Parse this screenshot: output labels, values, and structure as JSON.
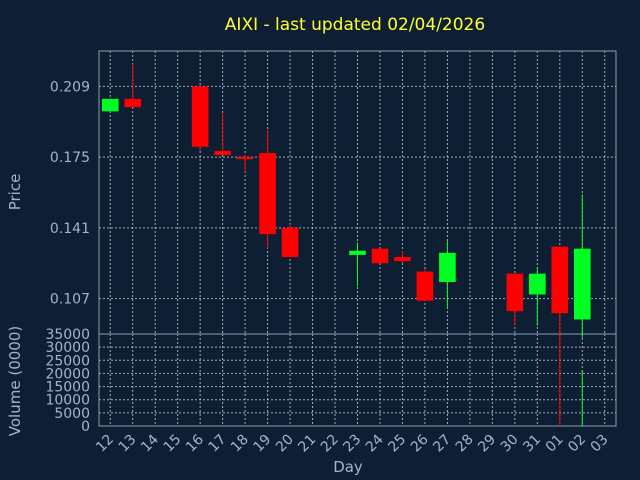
{
  "chart_data": {
    "type": "candlestick",
    "title": "AIXI - last updated 02/04/2026",
    "xlabel": "Day",
    "ylabel": "Price",
    "volume_label": "Volume (0000)",
    "x_ticks": [
      "12",
      "13",
      "14",
      "15",
      "16",
      "17",
      "18",
      "19",
      "20",
      "21",
      "22",
      "23",
      "24",
      "25",
      "26",
      "27",
      "28",
      "29",
      "30",
      "31",
      "01",
      "02",
      "03"
    ],
    "y_ticks": [
      0.107,
      0.141,
      0.175,
      0.209
    ],
    "y_tick_labels": [
      "0.107",
      "0.141",
      "0.175",
      "0.209"
    ],
    "ylim": [
      0.09,
      0.226
    ],
    "volume_ticks": [
      0,
      5000,
      10000,
      15000,
      20000,
      25000,
      30000,
      35000
    ],
    "volume_tick_labels": [
      "0",
      "5000",
      "10000",
      "15000",
      "20000",
      "25000",
      "30000",
      "35000"
    ],
    "volume_ylim": [
      0,
      35000
    ],
    "grid": true,
    "colors": {
      "up": "#00ff22",
      "down": "#ff0000",
      "background": "#0f1f33",
      "title": "#ffff33",
      "text": "#9fb6cc",
      "grid": "#b8c4d0"
    },
    "candles": [
      {
        "day": "12",
        "open": 0.197,
        "high": 0.203,
        "low": 0.197,
        "close": 0.203,
        "volume": 0
      },
      {
        "day": "13",
        "open": 0.203,
        "high": 0.22,
        "low": 0.199,
        "close": 0.199,
        "volume": 0
      },
      {
        "day": "16",
        "open": 0.209,
        "high": 0.209,
        "low": 0.178,
        "close": 0.18,
        "volume": 0
      },
      {
        "day": "17",
        "open": 0.178,
        "high": 0.196,
        "low": 0.176,
        "close": 0.176,
        "volume": 0
      },
      {
        "day": "18",
        "open": 0.175,
        "high": 0.176,
        "low": 0.168,
        "close": 0.174,
        "volume": 0
      },
      {
        "day": "19",
        "open": 0.177,
        "high": 0.188,
        "low": 0.131,
        "close": 0.138,
        "volume": 0
      },
      {
        "day": "20",
        "open": 0.141,
        "high": 0.143,
        "low": 0.127,
        "close": 0.127,
        "volume": 0
      },
      {
        "day": "23",
        "open": 0.128,
        "high": 0.134,
        "low": 0.113,
        "close": 0.13,
        "volume": 0
      },
      {
        "day": "24",
        "open": 0.131,
        "high": 0.131,
        "low": 0.124,
        "close": 0.124,
        "volume": 0
      },
      {
        "day": "25",
        "open": 0.127,
        "high": 0.13,
        "low": 0.124,
        "close": 0.125,
        "volume": 0
      },
      {
        "day": "26",
        "open": 0.12,
        "high": 0.121,
        "low": 0.106,
        "close": 0.106,
        "volume": 0
      },
      {
        "day": "27",
        "open": 0.115,
        "high": 0.135,
        "low": 0.103,
        "close": 0.129,
        "volume": 0
      },
      {
        "day": "30",
        "open": 0.119,
        "high": 0.119,
        "low": 0.094,
        "close": 0.101,
        "volume": 0
      },
      {
        "day": "31",
        "open": 0.109,
        "high": 0.122,
        "low": 0.094,
        "close": 0.119,
        "volume": 0
      },
      {
        "day": "01",
        "open": 0.132,
        "high": 0.132,
        "low": 0.083,
        "close": 0.1,
        "volume": 32000
      },
      {
        "day": "02",
        "open": 0.097,
        "high": 0.157,
        "low": 0.088,
        "close": 0.131,
        "volume": 21000
      }
    ]
  }
}
